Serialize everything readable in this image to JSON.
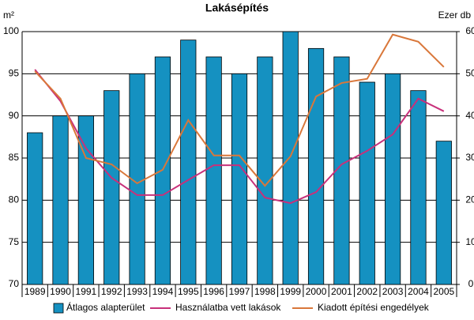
{
  "chart_data": {
    "type": "bar",
    "title": "Lakásépítés",
    "y_label": "m²",
    "y2_label": "Ezer db",
    "categories": [
      "1989",
      "1990",
      "1991",
      "1992",
      "1993",
      "1994",
      "1995",
      "1996",
      "1997",
      "1998",
      "1999",
      "2000",
      "2001",
      "2002",
      "2003",
      "2004",
      "2005"
    ],
    "series": [
      {
        "name": "Átlagos alapterület",
        "type": "bar",
        "axis": "y",
        "color": "#1591c1",
        "values": [
          88,
          90,
          90,
          93,
          95,
          97,
          99,
          97,
          95,
          97,
          100,
          98,
          97,
          94,
          95,
          93,
          87
        ]
      },
      {
        "name": "Használatba vett lakások",
        "type": "line",
        "axis": "y2",
        "color": "#c8307a",
        "values": [
          51.0,
          43.5,
          32.3,
          25.3,
          21.2,
          21.2,
          24.8,
          28.3,
          28.3,
          20.6,
          19.3,
          21.9,
          28.5,
          31.7,
          35.6,
          44.1,
          41.1
        ]
      },
      {
        "name": "Kiadott építési engedélyek",
        "type": "line",
        "axis": "y2",
        "color": "#d9773a",
        "values": [
          50.6,
          44.1,
          30.0,
          28.5,
          24.0,
          27.2,
          39.0,
          30.6,
          30.6,
          23.4,
          30.4,
          44.6,
          47.8,
          48.8,
          59.3,
          57.6,
          51.6
        ]
      }
    ],
    "ylim": [
      70,
      100
    ],
    "yticks": [
      70,
      75,
      80,
      85,
      90,
      95,
      100
    ],
    "y2lim": [
      0,
      60
    ],
    "y2ticks": [
      0,
      10,
      20,
      30,
      40,
      50,
      60
    ],
    "grid": true,
    "legend": "bottom"
  }
}
